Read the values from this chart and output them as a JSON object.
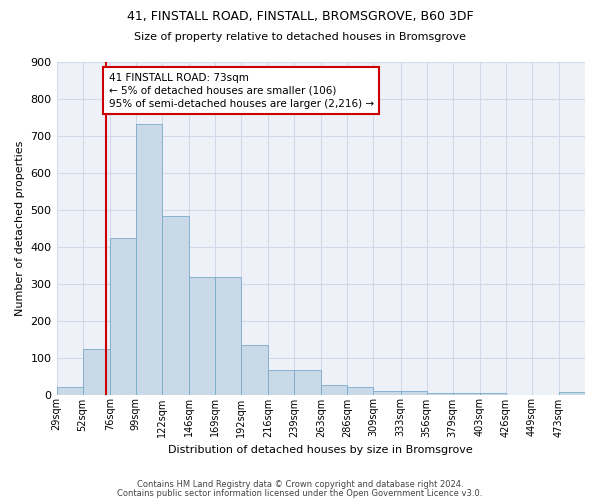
{
  "title1": "41, FINSTALL ROAD, FINSTALL, BROMSGROVE, B60 3DF",
  "title2": "Size of property relative to detached houses in Bromsgrove",
  "xlabel": "Distribution of detached houses by size in Bromsgrove",
  "ylabel": "Number of detached properties",
  "footer1": "Contains HM Land Registry data © Crown copyright and database right 2024.",
  "footer2": "Contains public sector information licensed under the Open Government Licence v3.0.",
  "bar_color": "#c9d9e8",
  "bar_edge_color": "#7aaac8",
  "grid_color": "#d0d8ea",
  "bg_color": "#eef2f8",
  "redline_color": "#cc0000",
  "annotation_line1": "41 FINSTALL ROAD: 73sqm",
  "annotation_line2": "← 5% of detached houses are smaller (106)",
  "annotation_line3": "95% of semi-detached houses are larger (2,216) →",
  "property_size": 73,
  "bin_edges": [
    29,
    52,
    76,
    99,
    122,
    146,
    169,
    192,
    216,
    239,
    263,
    286,
    309,
    333,
    356,
    379,
    403,
    426,
    449,
    473,
    496
  ],
  "bar_heights": [
    20,
    122,
    422,
    730,
    483,
    317,
    317,
    133,
    67,
    67,
    25,
    20,
    10,
    10,
    5,
    5,
    5,
    0,
    0,
    8
  ],
  "ylim": [
    0,
    900
  ],
  "yticks": [
    0,
    100,
    200,
    300,
    400,
    500,
    600,
    700,
    800,
    900
  ]
}
